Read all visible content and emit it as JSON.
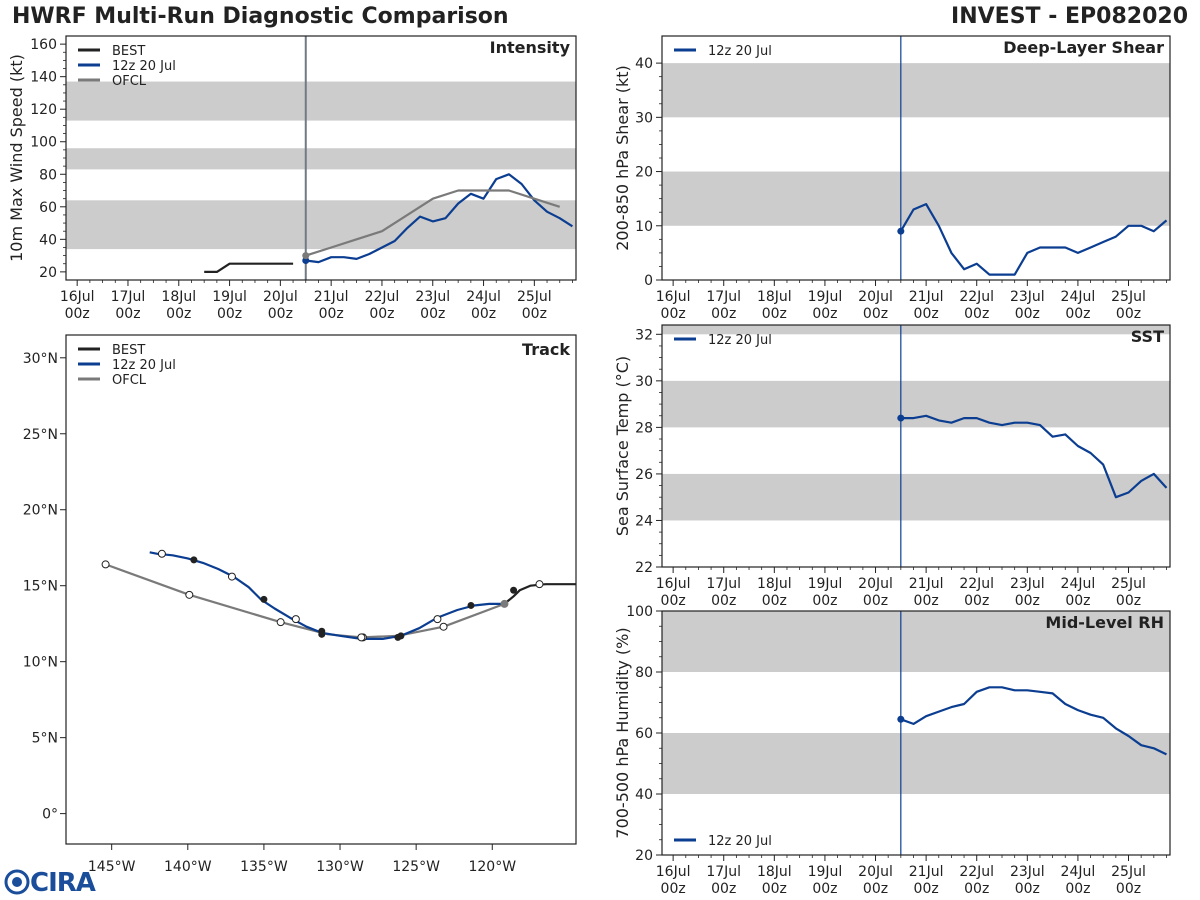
{
  "header": {
    "title_left": "HWRF Multi-Run Diagnostic Comparison",
    "title_right": "INVEST - EP082020"
  },
  "logo": {
    "text": "CIRA"
  },
  "colors": {
    "best": "#222222",
    "hwrf": "#0b3d91",
    "ofcl": "#7a7a7a",
    "band": "#cccccc"
  },
  "time_axis": {
    "ticks": [
      {
        "day": 16,
        "label1": "16Jul",
        "label2": "00z"
      },
      {
        "day": 17,
        "label1": "17Jul",
        "label2": "00z"
      },
      {
        "day": 18,
        "label1": "18Jul",
        "label2": "00z"
      },
      {
        "day": 19,
        "label1": "19Jul",
        "label2": "00z"
      },
      {
        "day": 20,
        "label1": "20Jul",
        "label2": "00z"
      },
      {
        "day": 21,
        "label1": "21Jul",
        "label2": "00z"
      },
      {
        "day": 22,
        "label1": "22Jul",
        "label2": "00z"
      },
      {
        "day": 23,
        "label1": "23Jul",
        "label2": "00z"
      },
      {
        "day": 24,
        "label1": "24Jul",
        "label2": "00z"
      },
      {
        "day": 25,
        "label1": "25Jul",
        "label2": "00z"
      }
    ],
    "range": [
      15.78,
      25.82
    ],
    "init_day": 20.5
  },
  "chart_data": [
    {
      "id": "intensity",
      "type": "line",
      "title": "Intensity",
      "ylabel": "10m Max Wind Speed (kt)",
      "ylim": [
        15,
        165
      ],
      "yticks": [
        20,
        40,
        60,
        80,
        100,
        120,
        140,
        160
      ],
      "bands": [
        [
          34,
          64
        ],
        [
          83,
          96
        ],
        [
          113,
          137
        ]
      ],
      "init_vline": true,
      "legend": [
        "BEST",
        "12z 20 Jul",
        "OFCL"
      ],
      "series": [
        {
          "name": "BEST",
          "color_key": "best",
          "x": [
            18.5,
            18.75,
            19.0,
            19.25,
            19.5,
            19.75,
            20.0,
            20.25
          ],
          "y": [
            20,
            20,
            25,
            25,
            25,
            25,
            25,
            25
          ]
        },
        {
          "name": "12z 20 Jul",
          "color_key": "hwrf",
          "x": [
            20.5,
            20.75,
            21.0,
            21.25,
            21.5,
            21.75,
            22.0,
            22.25,
            22.5,
            22.75,
            23.0,
            23.25,
            23.5,
            23.75,
            24.0,
            24.25,
            24.5,
            24.75,
            25.0,
            25.25,
            25.5,
            25.75
          ],
          "y": [
            27,
            26,
            29,
            29,
            28,
            31,
            35,
            39,
            47,
            54,
            51,
            53,
            62,
            68,
            65,
            77,
            80,
            74,
            64,
            57,
            53,
            48
          ]
        },
        {
          "name": "OFCL",
          "color_key": "ofcl",
          "x": [
            20.5,
            21.0,
            21.5,
            22.0,
            22.5,
            23.0,
            23.5,
            24.0,
            24.5,
            25.0,
            25.5
          ],
          "y": [
            30,
            35,
            40,
            45,
            55,
            65,
            70,
            70,
            70,
            65,
            60
          ]
        }
      ]
    },
    {
      "id": "shear",
      "type": "line",
      "title": "Deep-Layer Shear",
      "ylabel": "200-850 hPa Shear (kt)",
      "ylim": [
        0,
        45
      ],
      "yticks": [
        0,
        10,
        20,
        30,
        40
      ],
      "bands": [
        [
          10,
          20
        ],
        [
          30,
          40
        ]
      ],
      "legend": [
        "12z 20 Jul"
      ],
      "series": [
        {
          "name": "12z 20 Jul",
          "color_key": "hwrf",
          "x": [
            20.5,
            20.75,
            21.0,
            21.25,
            21.5,
            21.75,
            22.0,
            22.25,
            22.5,
            22.75,
            23.0,
            23.25,
            23.5,
            23.75,
            24.0,
            24.25,
            24.5,
            24.75,
            25.0,
            25.25,
            25.5,
            25.75
          ],
          "y": [
            9,
            13,
            14,
            10,
            5,
            2,
            3,
            1,
            1,
            1,
            5,
            6,
            6,
            6,
            5,
            6,
            7,
            8,
            10,
            10,
            9,
            11
          ]
        }
      ]
    },
    {
      "id": "sst",
      "type": "line",
      "title": "SST",
      "ylabel": "Sea Surface Temp (°C)",
      "ylim": [
        22,
        32.4
      ],
      "yticks": [
        22,
        24,
        26,
        28,
        30,
        32
      ],
      "bands": [
        [
          24,
          26
        ],
        [
          28,
          30
        ],
        [
          32,
          32.4
        ]
      ],
      "legend": [
        "12z 20 Jul"
      ],
      "series": [
        {
          "name": "12z 20 Jul",
          "color_key": "hwrf",
          "x": [
            20.5,
            20.75,
            21.0,
            21.25,
            21.5,
            21.75,
            22.0,
            22.25,
            22.5,
            22.75,
            23.0,
            23.25,
            23.5,
            23.75,
            24.0,
            24.25,
            24.5,
            24.75,
            25.0,
            25.25,
            25.5,
            25.75
          ],
          "y": [
            28.4,
            28.4,
            28.5,
            28.3,
            28.2,
            28.4,
            28.4,
            28.2,
            28.1,
            28.2,
            28.2,
            28.1,
            27.6,
            27.7,
            27.2,
            26.9,
            26.4,
            25.0,
            25.2,
            25.7,
            26.0,
            25.4
          ]
        }
      ]
    },
    {
      "id": "rh",
      "type": "line",
      "title": "Mid-Level RH",
      "ylabel": "700-500 hPa Humidity (%)",
      "ylim": [
        20,
        100
      ],
      "yticks": [
        20,
        40,
        60,
        80,
        100
      ],
      "bands": [
        [
          40,
          60
        ],
        [
          80,
          100
        ]
      ],
      "legend": [
        "12z 20 Jul"
      ],
      "series": [
        {
          "name": "12z 20 Jul",
          "color_key": "hwrf",
          "x": [
            20.5,
            20.75,
            21.0,
            21.25,
            21.5,
            21.75,
            22.0,
            22.25,
            22.5,
            22.75,
            23.0,
            23.25,
            23.5,
            23.75,
            24.0,
            24.25,
            24.5,
            24.75,
            25.0,
            25.25,
            25.5,
            25.75
          ],
          "y": [
            64.5,
            63,
            65.5,
            67,
            68.5,
            69.5,
            73.5,
            75,
            75,
            74,
            74,
            73.5,
            73,
            69.5,
            67.5,
            66,
            65,
            61.5,
            59,
            56,
            55,
            53
          ]
        }
      ]
    },
    {
      "id": "track",
      "type": "scatter",
      "title": "Track",
      "xlim": [
        -148,
        -114.5
      ],
      "ylim": [
        -2,
        31.5
      ],
      "xticks": [
        -145,
        -140,
        -135,
        -130,
        -125,
        -120
      ],
      "xtick_labels": [
        "145°W",
        "140°W",
        "135°W",
        "130°W",
        "125°W",
        "120°W"
      ],
      "yticks": [
        0,
        5,
        10,
        15,
        20,
        25,
        30
      ],
      "ytick_labels": [
        "0°",
        "5°N",
        "10°N",
        "15°N",
        "20°N",
        "25°N",
        "30°N"
      ],
      "legend": [
        "BEST",
        "12z 20 Jul",
        "OFCL"
      ],
      "series": [
        {
          "name": "BEST",
          "color_key": "best",
          "lon": [
            -114.5,
            -115.5,
            -116.5,
            -117.5,
            -118.2,
            -118.6,
            -119.2
          ],
          "lat": [
            15.1,
            15.1,
            15.1,
            15.0,
            14.7,
            14.3,
            13.8
          ],
          "markers": [
            [
              -118.6,
              14.7
            ]
          ]
        },
        {
          "name": "12z 20 Jul",
          "color_key": "hwrf",
          "lon": [
            -119.2,
            -120.2,
            -121.2,
            -122.3,
            -123.6,
            -124.8,
            -126.0,
            -127.2,
            -128.6,
            -130.0,
            -131.2,
            -132.2,
            -133.3,
            -134.3,
            -135.2,
            -136.0,
            -137.0,
            -138.0,
            -139.0,
            -140.0,
            -141.0,
            -142.0,
            -142.5
          ],
          "lat": [
            13.8,
            13.8,
            13.7,
            13.4,
            12.9,
            12.2,
            11.7,
            11.5,
            11.5,
            11.7,
            11.9,
            12.3,
            12.9,
            13.5,
            14.1,
            14.9,
            15.6,
            16.1,
            16.5,
            16.8,
            17.0,
            17.1,
            17.2
          ],
          "markers_open": [
            [
              -141.7,
              17.1
            ],
            [
              -137.1,
              15.6
            ],
            [
              -132.9,
              12.8
            ],
            [
              -128.5,
              11.6
            ],
            [
              -123.6,
              12.8
            ],
            [
              -116.9,
              15.1
            ]
          ],
          "markers_filled": [
            [
              -139.6,
              16.7
            ],
            [
              -135.0,
              14.1
            ],
            [
              -131.2,
              12.0
            ],
            [
              -126.0,
              11.7
            ],
            [
              -121.4,
              13.7
            ]
          ]
        },
        {
          "name": "OFCL",
          "color_key": "ofcl",
          "lon": [
            -119.2,
            -123.2,
            -126.2,
            -128.6,
            -130.8,
            -133.9,
            -139.9,
            -145.4
          ],
          "lat": [
            13.8,
            12.3,
            11.7,
            11.6,
            11.8,
            12.6,
            14.4,
            16.4
          ],
          "markers_open": [
            [
              -123.2,
              12.3
            ],
            [
              -128.6,
              11.6
            ],
            [
              -133.9,
              12.6
            ],
            [
              -139.9,
              14.4
            ],
            [
              -145.4,
              16.4
            ]
          ],
          "markers_filled": [
            [
              -126.2,
              11.6
            ],
            [
              -131.2,
              11.8
            ]
          ]
        }
      ]
    }
  ]
}
